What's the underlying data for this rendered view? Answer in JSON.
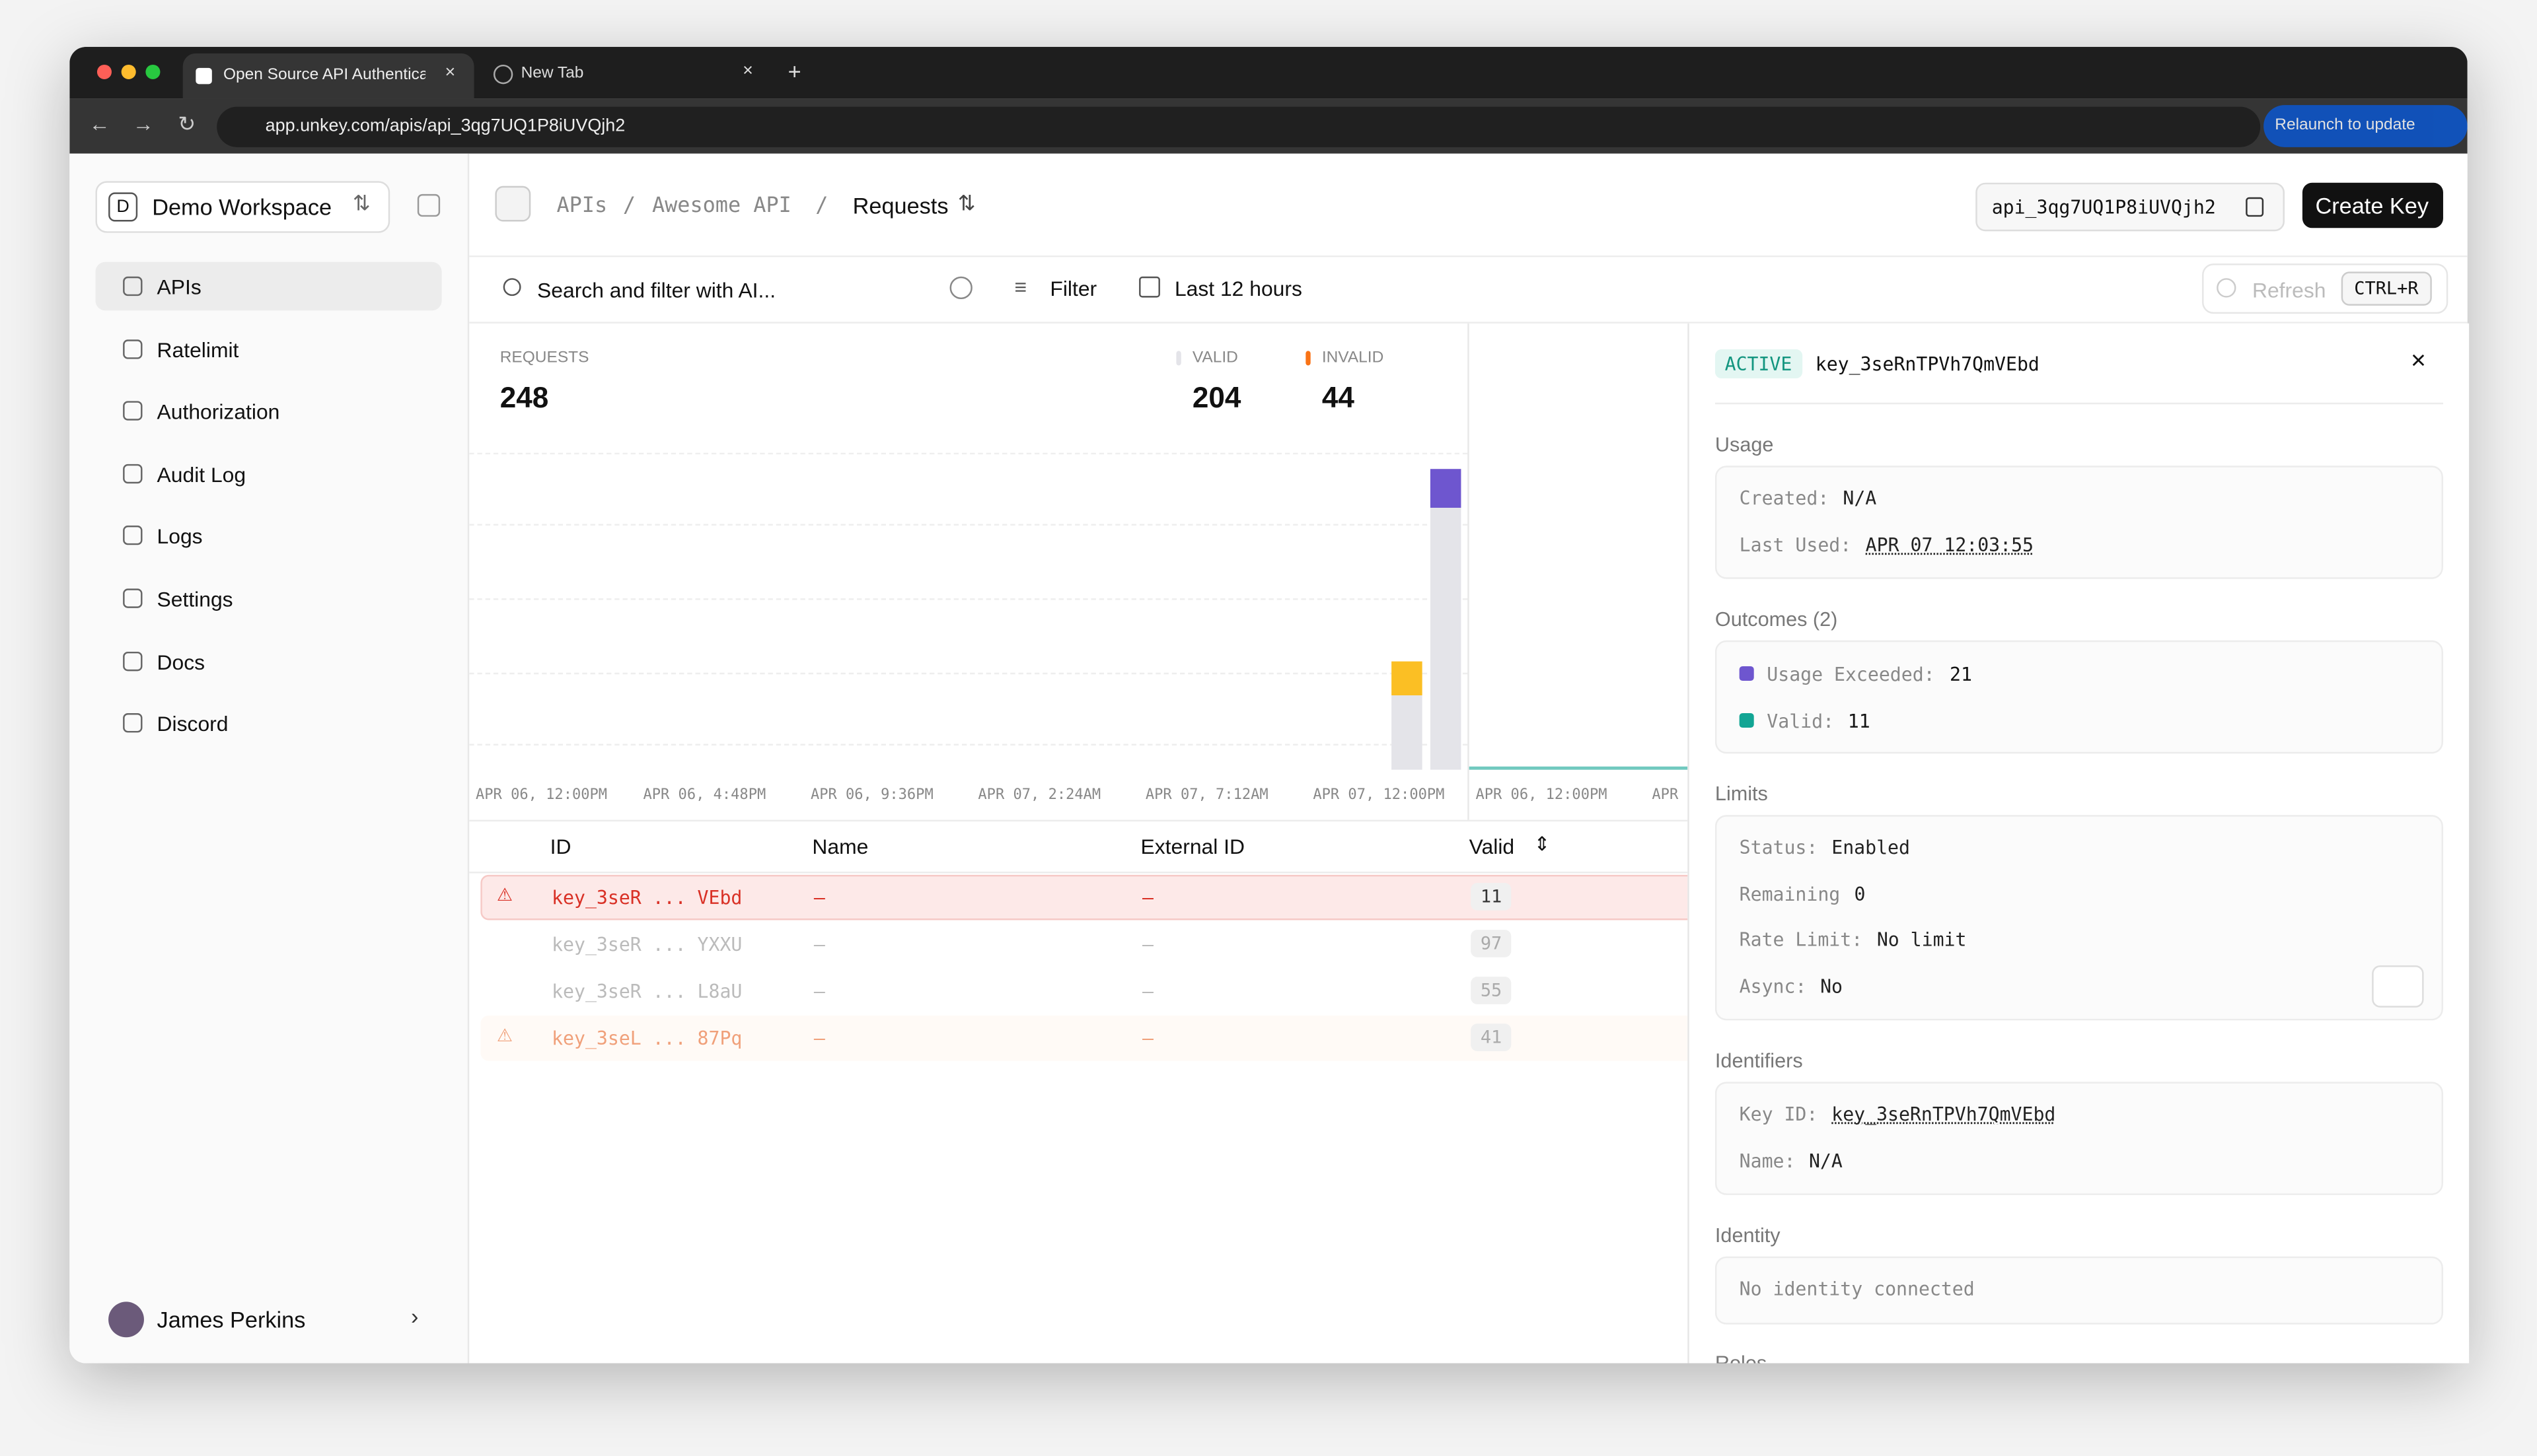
{
  "browser": {
    "tabs": [
      "Open Source API Authenticati",
      "New Tab"
    ],
    "url": "app.unkey.com/apis/api_3qg7UQ1P8iUVQjh2",
    "relaunch": "Relaunch to update"
  },
  "sidebar": {
    "workspace_initial": "D",
    "workspace": "Demo Workspace",
    "nav": [
      "APIs",
      "Ratelimit",
      "Authorization",
      "Audit Log",
      "Logs",
      "Settings",
      "Docs",
      "Discord"
    ],
    "user": "James Perkins"
  },
  "header": {
    "breadcrumb": [
      "APIs",
      "Awesome API",
      "Requests"
    ],
    "api_id": "api_3qg7UQ1P8iUVQjh2",
    "create": "Create Key"
  },
  "filters": {
    "search": "Search and filter with AI...",
    "filter": "Filter",
    "range": "Last 12 hours",
    "refresh": "Refresh",
    "shortcut": "CTRL+R"
  },
  "stats": [
    {
      "label": "REQUESTS",
      "value": 248
    },
    {
      "label": "VALID",
      "value": 204
    },
    {
      "label": "INVALID",
      "value": 44
    }
  ],
  "chart": {
    "valid_color": "#e4e4e9",
    "bars": [
      {
        "valid": 45,
        "invalid": 21,
        "color": "#fbbf24"
      },
      {
        "valid": 159,
        "invalid": 23,
        "color": "#6e56cf"
      }
    ],
    "x_labels": [
      "APR 06, 12:00PM",
      "APR 06, 4:48PM",
      "APR 06, 9:36PM",
      "APR 07, 2:24AM",
      "APR 07, 7:12AM",
      "APR 07, 12:00PM"
    ],
    "x_labels_2": [
      "APR 06, 12:00PM",
      "APR"
    ]
  },
  "table": {
    "columns": [
      "ID",
      "Name",
      "External ID",
      "Valid"
    ],
    "rows": [
      [
        "key_3seR ... VEbd",
        "–",
        "–",
        11
      ],
      [
        "key_3seR ... YXXU",
        "–",
        "–",
        97
      ],
      [
        "key_3seR ... L8aU",
        "–",
        "–",
        55
      ],
      [
        "key_3seL ... 87Pq",
        "–",
        "–",
        41
      ]
    ]
  },
  "panel": {
    "status": "ACTIVE",
    "key": "key_3seRnTPVh7QmVEbd",
    "usage": {
      "title": "Usage",
      "created_label": "Created:",
      "created": "N/A",
      "last_used_label": "Last Used:",
      "last_used": "APR 07 12:03:55"
    },
    "outcomes": {
      "title": "Outcomes (2)",
      "items": [
        {
          "label": "Usage Exceeded:",
          "value": 21,
          "color": "#6e56cf"
        },
        {
          "label": "Valid:",
          "value": 11,
          "color": "#12a594"
        }
      ]
    },
    "limits": {
      "title": "Limits",
      "rows": [
        [
          "Status:",
          "Enabled"
        ],
        [
          "Remaining",
          "0"
        ],
        [
          "Rate Limit:",
          "No limit"
        ],
        [
          "Async:",
          "No"
        ]
      ]
    },
    "identifiers": {
      "title": "Identifiers",
      "key_id_label": "Key ID:",
      "key_id": "key_3seRnTPVh7QmVEbd",
      "name_label": "Name:",
      "name": "N/A"
    },
    "identity": {
      "title": "Identity",
      "text": "No identity connected"
    },
    "roles": {
      "title": "Roles"
    }
  }
}
